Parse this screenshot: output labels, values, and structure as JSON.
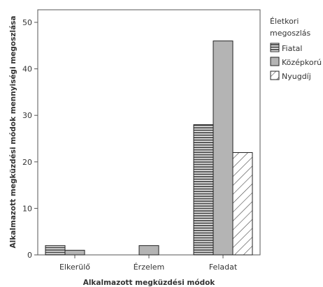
{
  "chart_data": {
    "type": "bar",
    "categories": [
      "Elkerülő",
      "Érzelem",
      "Feladat"
    ],
    "series": [
      {
        "name": "Fiatal",
        "values": [
          2,
          0,
          28
        ],
        "color": "#5a5a5a",
        "pattern": "horizontal-lines"
      },
      {
        "name": "Középkorú",
        "values": [
          1,
          2,
          46
        ],
        "color": "#b4b4b4",
        "pattern": "solid"
      },
      {
        "name": "Nyugdíj",
        "values": [
          0,
          0,
          22
        ],
        "color": "#ffffff",
        "pattern": "diagonal-lines"
      }
    ],
    "ylim": [
      0,
      50
    ],
    "yticks": [
      "0",
      "10",
      "20",
      "30",
      "40",
      "50"
    ],
    "xlabel": "Alkalmazott megküzdési módok",
    "ylabel": "Alkalmazott megküzdési módok mennyiségi megoszlása",
    "grid": false,
    "legend": {
      "title_lines": [
        "Életkori",
        "megoszlás"
      ],
      "placement": "right"
    }
  }
}
